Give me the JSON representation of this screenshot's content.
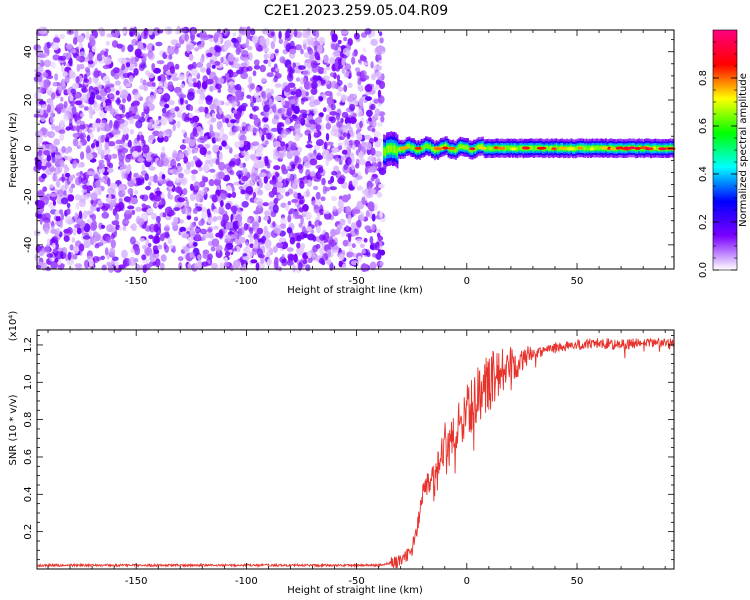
{
  "title": "C2E1.2023.259.05.04.R09",
  "chart_data": [
    {
      "type": "heatmap",
      "xlabel": "Height of straight line (km)",
      "ylabel": "Frequency (Hz)",
      "xlim": [
        -195,
        94
      ],
      "ylim": [
        -50,
        49
      ],
      "xticks": [
        -150,
        -100,
        -50,
        0,
        50
      ],
      "yticks": [
        -40,
        -20,
        0,
        20,
        40
      ],
      "colorbar": {
        "label": "Normalized spectral amplitude",
        "range": [
          0,
          1
        ],
        "ticks": [
          0.0,
          0.2,
          0.4,
          0.6,
          0.8
        ],
        "tick_labels": [
          "0.0",
          "0.2",
          "0.4",
          "0.6",
          "0.8"
        ],
        "colors": [
          "#ffffff",
          "#7a00ff",
          "#0000ff",
          "#00ffff",
          "#00ff00",
          "#ffff00",
          "#ff0000",
          "#ff0080"
        ]
      },
      "regions": [
        {
          "name": "noise",
          "x_range": [
            -195,
            -38
          ],
          "freq_range": [
            -50,
            49
          ],
          "amplitude": [
            0.0,
            0.15
          ]
        },
        {
          "name": "signal",
          "x_range": [
            -38,
            94
          ],
          "freq_center": 0,
          "freq_halfwidth": 3,
          "amplitude": [
            0.2,
            0.95
          ]
        }
      ]
    },
    {
      "type": "line",
      "xlabel": "Height of straight line (km)",
      "ylabel": "SNR (10 * v/v)",
      "y_multiplier": "(x10⁴)",
      "xlim": [
        -195,
        94
      ],
      "ylim": [
        0,
        1.28
      ],
      "xticks": [
        -150,
        -100,
        -50,
        0,
        50
      ],
      "yticks": [
        0.2,
        0.4,
        0.6,
        0.8,
        1.0,
        1.2
      ],
      "ytick_labels": [
        "0.2",
        "0.4",
        "0.6",
        "0.8",
        "1.0",
        "1.2"
      ],
      "color": "#e8332c",
      "series": [
        {
          "x": [
            -195,
            -150,
            -100,
            -60,
            -40,
            -30,
            -25,
            -22,
            -20,
            -18,
            -15,
            -12,
            -10,
            -8,
            -5,
            -2,
            0,
            3,
            6,
            10,
            15,
            20,
            25,
            30,
            35,
            40,
            50,
            60,
            70,
            80,
            94
          ],
          "values": [
            0.02,
            0.02,
            0.02,
            0.02,
            0.02,
            0.04,
            0.1,
            0.25,
            0.4,
            0.45,
            0.5,
            0.6,
            0.7,
            0.65,
            0.75,
            0.8,
            0.85,
            0.88,
            0.95,
            1.0,
            1.05,
            1.1,
            1.13,
            1.15,
            1.17,
            1.19,
            1.2,
            1.21,
            1.2,
            1.21,
            1.21
          ]
        }
      ]
    }
  ]
}
